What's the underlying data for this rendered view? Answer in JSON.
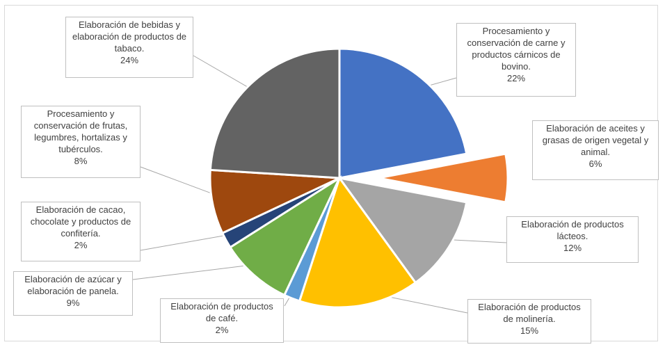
{
  "chart_data": {
    "type": "pie",
    "title": "",
    "legend": "none",
    "slices": [
      {
        "label": "Procesamiento y conservación de carne y productos cárnicos de bovino.",
        "pct_label": "22%",
        "value": 22,
        "color": "#4472C4",
        "exploded": false
      },
      {
        "label": "Elaboración de aceites y grasas de origen vegetal y animal.",
        "pct_label": "6%",
        "value": 6,
        "color": "#ED7D31",
        "exploded": true
      },
      {
        "label": "Elaboración de productos lácteos.",
        "pct_label": "12%",
        "value": 12,
        "color": "#A5A5A5",
        "exploded": false
      },
      {
        "label": "Elaboración de productos de molinería.",
        "pct_label": "15%",
        "value": 15,
        "color": "#FFC000",
        "exploded": false
      },
      {
        "label": "Elaboración de productos de café.",
        "pct_label": "2%",
        "value": 2,
        "color": "#5B9BD5",
        "exploded": false
      },
      {
        "label": "Elaboración de azúcar y elaboración de panela.",
        "pct_label": "9%",
        "value": 9,
        "color": "#70AD47",
        "exploded": false
      },
      {
        "label": "Elaboración de cacao, chocolate y productos de confitería.",
        "pct_label": "2%",
        "value": 2,
        "color": "#264478",
        "exploded": false
      },
      {
        "label": "Procesamiento y conservación de frutas, legumbres, hortalizas y tubérculos.",
        "pct_label": "8%",
        "value": 8,
        "color": "#9E480E",
        "exploded": false
      },
      {
        "label": "Elaboración de bebidas y elaboración de productos de tabaco.",
        "pct_label": "24%",
        "value": 24,
        "color": "#636363",
        "exploded": false
      }
    ]
  }
}
